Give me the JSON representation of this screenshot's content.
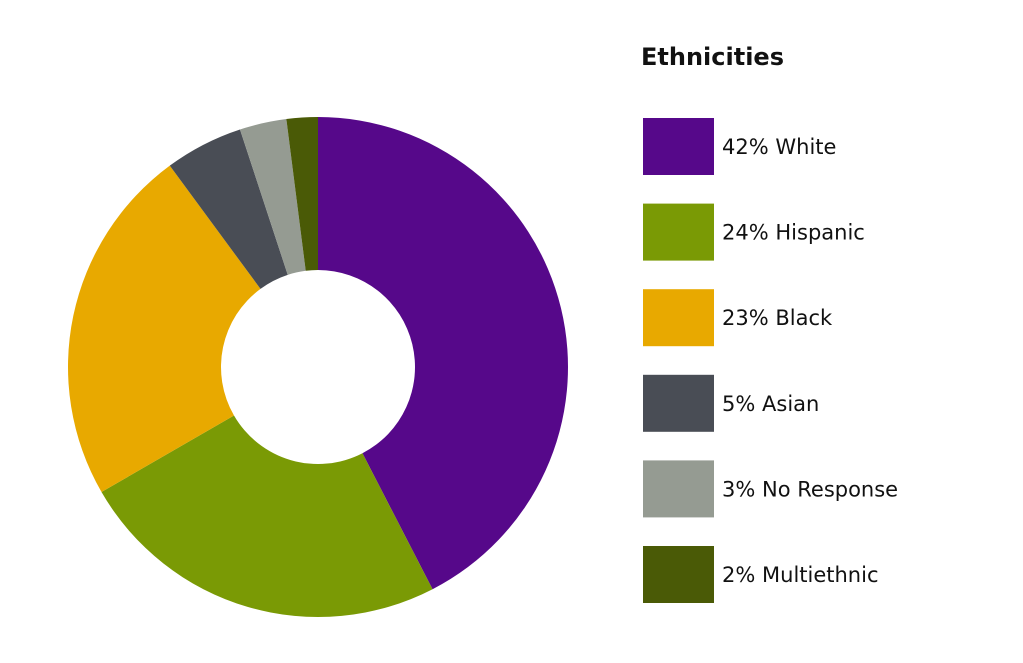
{
  "chart_data": {
    "type": "donut",
    "legend_title": "Ethnicities",
    "categories": [
      "White",
      "Hispanic",
      "Black",
      "Asian",
      "No Response",
      "Multiethnic"
    ],
    "values": [
      42,
      24,
      23,
      5,
      3,
      2
    ],
    "value_labels": [
      "42%",
      "24%",
      "23%",
      "5%",
      "3%",
      "2%"
    ],
    "colors": [
      "#56088a",
      "#7a9a05",
      "#e8a900",
      "#494d55",
      "#959b92",
      "#4a5a06"
    ],
    "legend": "right"
  }
}
